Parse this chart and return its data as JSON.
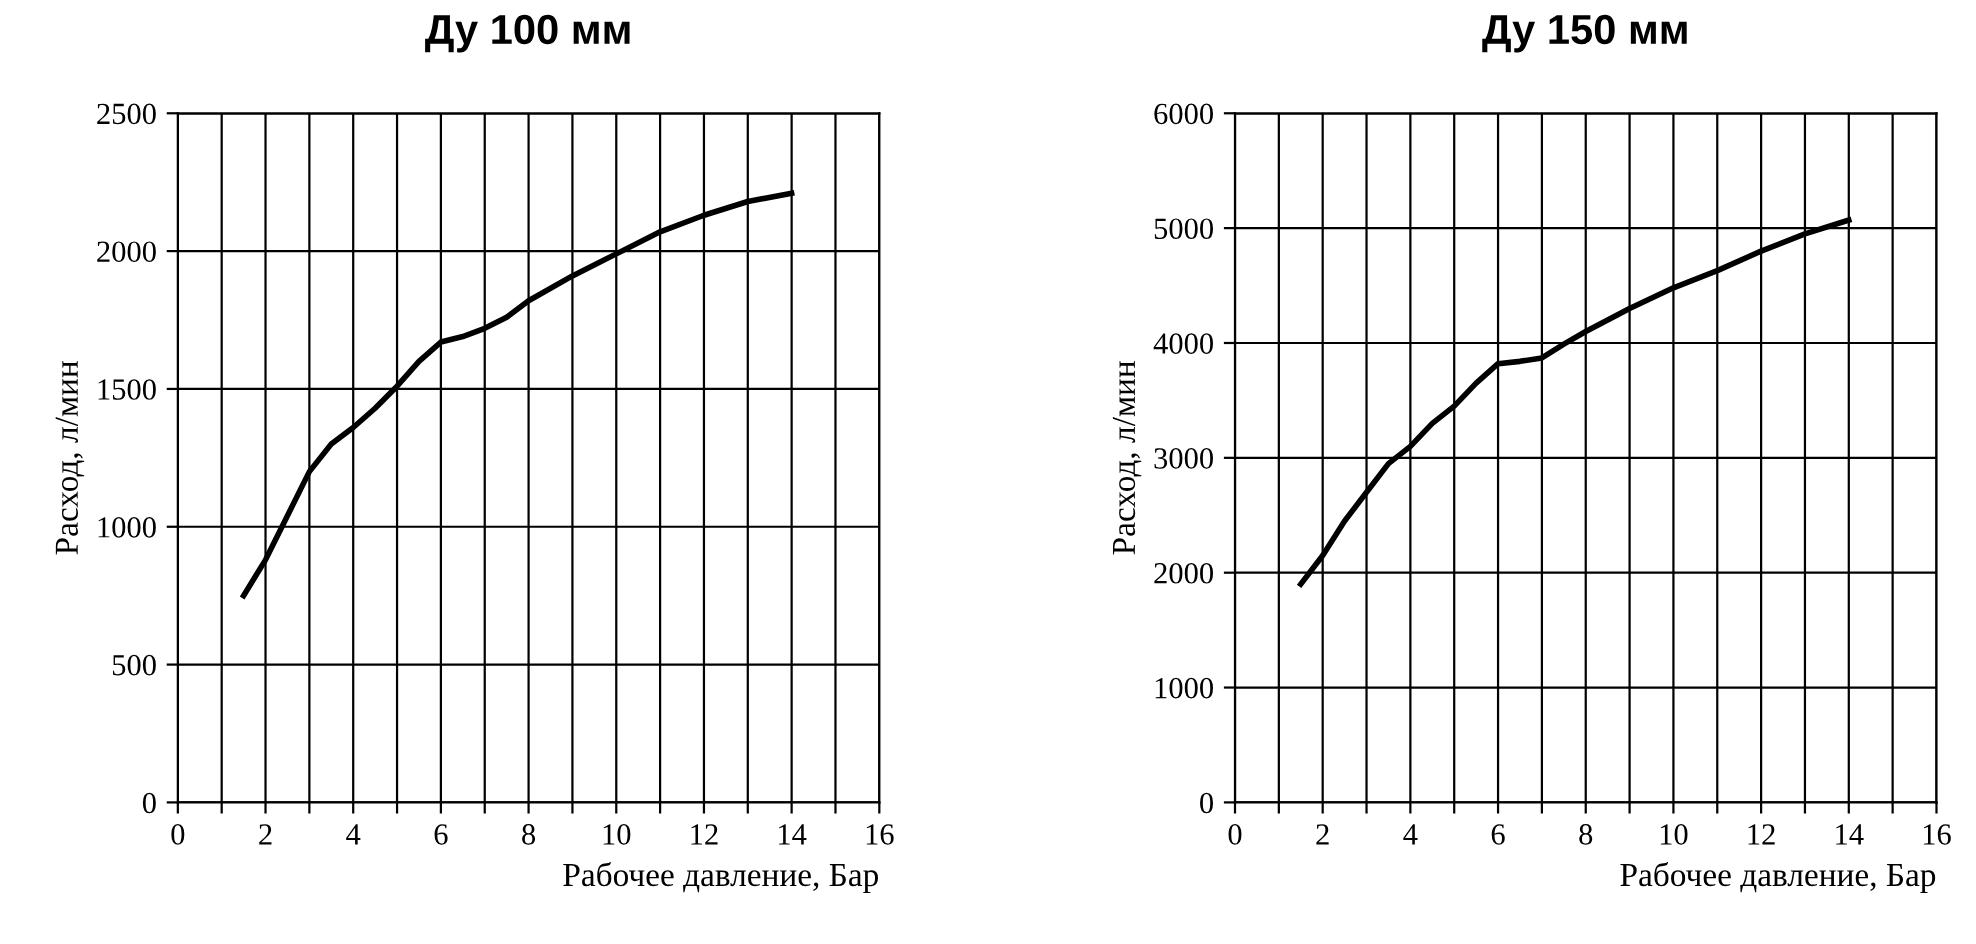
{
  "chart_data": [
    {
      "type": "line",
      "title": "Ду 100 мм",
      "xlabel": "Рабочее давление, Бар",
      "ylabel": "Расход, л/мин",
      "x": [
        1.5,
        2,
        2.5,
        3,
        3.5,
        4,
        4.5,
        5,
        5.5,
        6,
        6.5,
        7,
        7.5,
        8,
        9,
        10,
        11,
        12,
        13,
        14
      ],
      "series": [
        {
          "color": "#000000",
          "values": [
            750,
            880,
            1040,
            1200,
            1300,
            1360,
            1430,
            1510,
            1600,
            1670,
            1690,
            1720,
            1760,
            1820,
            1910,
            1990,
            2070,
            2130,
            2180,
            2210
          ]
        }
      ],
      "xlim": [
        0,
        16
      ],
      "xticks": [
        0,
        {
          "value": 1,
          "label": null
        },
        2,
        {
          "value": 3,
          "label": null
        },
        4,
        {
          "value": 5,
          "label": null
        },
        6,
        {
          "value": 7,
          "label": null
        },
        8,
        {
          "value": 9,
          "label": null
        },
        10,
        {
          "value": 11,
          "label": null
        },
        12,
        {
          "value": 13,
          "label": null
        },
        14,
        {
          "value": 15,
          "label": null
        },
        16
      ],
      "ylim": [
        0,
        2500
      ],
      "yticks": [
        0,
        500,
        1000,
        1500,
        2000,
        2500
      ],
      "grid": true,
      "legend": false
    },
    {
      "type": "line",
      "title": "Ду 150 мм",
      "xlabel": "Рабочее давление, Бар",
      "ylabel": "Расход, л/мин",
      "x": [
        1.5,
        2,
        2.5,
        3,
        3.5,
        4,
        4.5,
        5,
        5.5,
        6,
        6.5,
        7,
        7.5,
        8,
        9,
        10,
        11,
        12,
        13,
        14
      ],
      "series": [
        {
          "color": "#000000",
          "values": [
            1900,
            2150,
            2450,
            2700,
            2950,
            3100,
            3300,
            3450,
            3650,
            3820,
            3840,
            3870,
            3990,
            4100,
            4300,
            4480,
            4630,
            4800,
            4950,
            5070
          ]
        }
      ],
      "xlim": [
        0,
        16
      ],
      "xticks": [
        0,
        {
          "value": 1,
          "label": null
        },
        2,
        {
          "value": 3,
          "label": null
        },
        4,
        {
          "value": 5,
          "label": null
        },
        6,
        {
          "value": 7,
          "label": null
        },
        8,
        {
          "value": 9,
          "label": null
        },
        10,
        {
          "value": 11,
          "label": null
        },
        12,
        {
          "value": 13,
          "label": null
        },
        14,
        {
          "value": 15,
          "label": null
        },
        16
      ],
      "ylim": [
        0,
        6000
      ],
      "yticks": [
        0,
        1000,
        2000,
        3000,
        4000,
        5000,
        6000
      ],
      "grid": true,
      "legend": false
    }
  ]
}
